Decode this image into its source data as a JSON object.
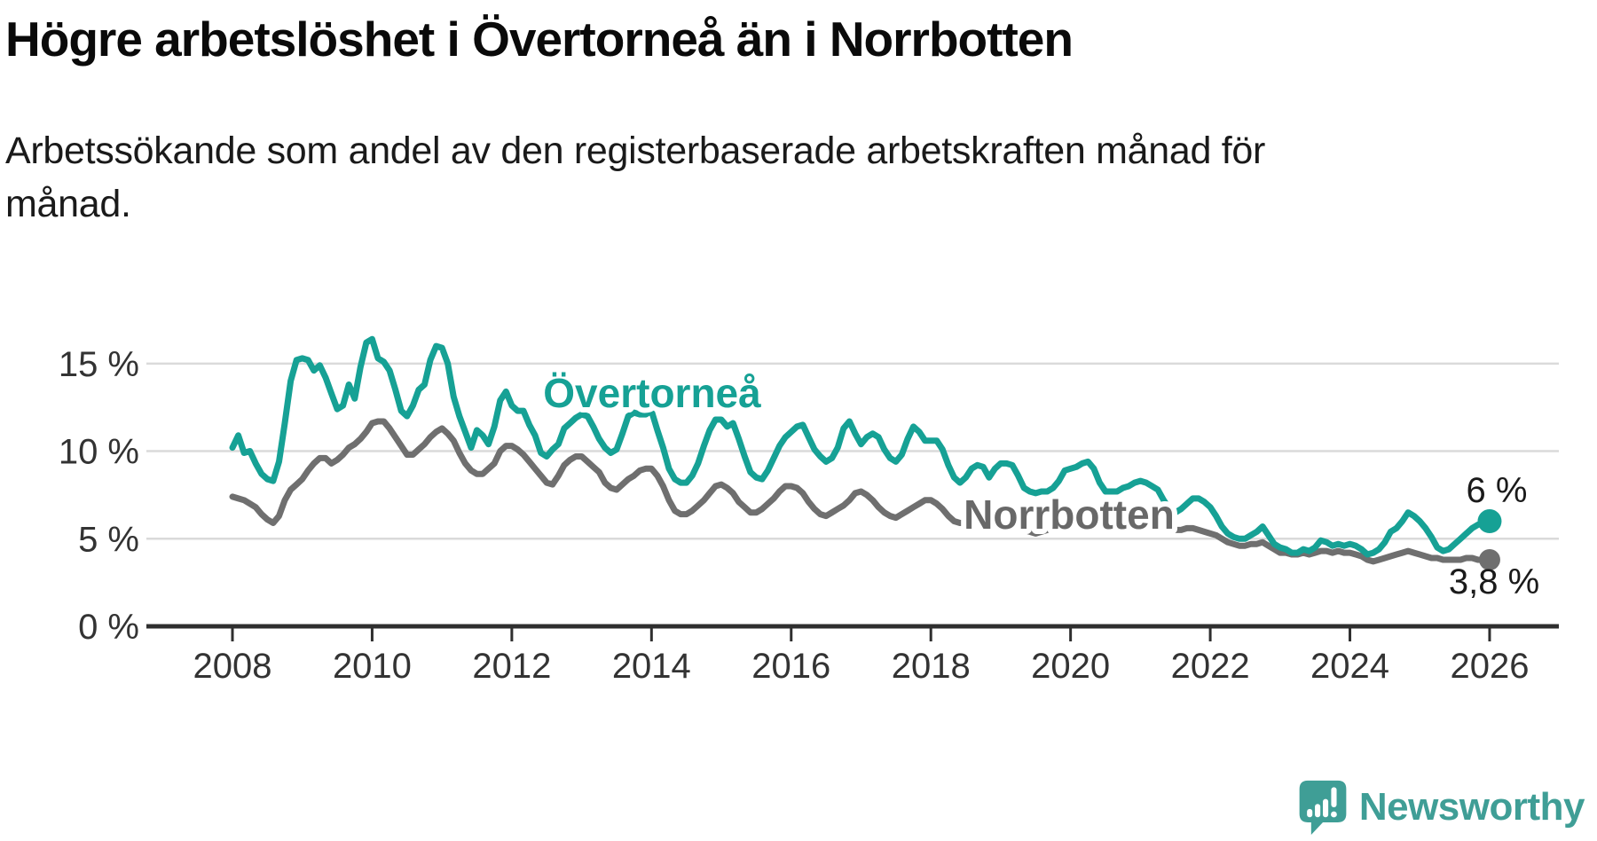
{
  "header": {
    "title": "Högre arbetslöshet i Övertorneå än i Norrbotten",
    "subtitle_line1": "Arbetssökande som andel av den registerbaserade arbetskraften månad för",
    "subtitle_line2": "månad."
  },
  "colors": {
    "accent_teal": "#16A195",
    "line_gray": "#6F6F6F",
    "label_gray": "#686868",
    "grid": "#DADADA",
    "axis": "#2F2F2F",
    "axis_text": "#333333",
    "text": "#1A1A1A",
    "logo_teal": "#3F9E96"
  },
  "annotations": {
    "overtornea_label": "Övertorneå",
    "norrbotten_label": "Norrbotten",
    "overtornea_end_value": "6 %",
    "norrbotten_end_value": "3,8 %"
  },
  "branding": {
    "logo_icon": "speech-bubble-chart-icon",
    "logo_text": "Newsworthy"
  },
  "chart_data": {
    "type": "line",
    "title": "Högre arbetslöshet i Övertorneå än i Norrbotten",
    "ylabel": "Arbetssökande som andel av den registerbaserade arbetskraften",
    "unit": "percent",
    "frequency": "monthly",
    "x_start": "2008-01",
    "x_end": "2026-01",
    "grid": "horizontal",
    "legend_position": "inline-labels",
    "ylim": [
      0,
      17
    ],
    "y_tick_values": [
      15,
      10,
      5,
      0
    ],
    "y_tick_labels": [
      "15 %",
      "10 %",
      "5 %",
      "0 %"
    ],
    "x_tick_years": [
      2008,
      2010,
      2012,
      2014,
      2016,
      2018,
      2020,
      2022,
      2024,
      2026
    ],
    "x_tick_labels": [
      "2008",
      "2010",
      "2012",
      "2014",
      "2016",
      "2018",
      "2020",
      "2022",
      "2024",
      "2026"
    ],
    "series": [
      {
        "name": "Övertorneå",
        "color": "#16A195",
        "end_label": "6 %",
        "end_value": 6.0,
        "values": [
          10.2,
          10.9,
          9.9,
          10.0,
          9.3,
          8.7,
          8.4,
          8.3,
          9.4,
          11.6,
          14.0,
          15.2,
          15.3,
          15.2,
          14.6,
          14.9,
          14.2,
          13.3,
          12.4,
          12.6,
          13.8,
          13.0,
          14.8,
          16.2,
          16.4,
          15.3,
          15.1,
          14.6,
          13.5,
          12.3,
          12.0,
          12.6,
          13.5,
          13.8,
          15.2,
          16.0,
          15.9,
          15.0,
          13.1,
          12.0,
          11.1,
          10.2,
          11.2,
          10.9,
          10.4,
          11.4,
          12.9,
          13.4,
          12.6,
          12.3,
          12.3,
          11.5,
          10.9,
          9.9,
          9.7,
          10.1,
          10.4,
          11.3,
          11.6,
          11.9,
          12.1,
          12.0,
          11.4,
          10.7,
          10.2,
          9.9,
          10.1,
          11.0,
          12.0,
          12.2,
          12.1,
          12.1,
          12.3,
          11.2,
          10.2,
          9.0,
          8.4,
          8.2,
          8.2,
          8.6,
          9.3,
          10.3,
          11.2,
          11.8,
          11.8,
          11.4,
          11.6,
          10.7,
          9.7,
          8.8,
          8.5,
          8.4,
          8.9,
          9.6,
          10.3,
          10.8,
          11.1,
          11.4,
          11.5,
          10.8,
          10.1,
          9.7,
          9.4,
          9.6,
          10.2,
          11.3,
          11.7,
          11.0,
          10.4,
          10.8,
          11.0,
          10.8,
          10.1,
          9.6,
          9.4,
          9.8,
          10.7,
          11.4,
          11.1,
          10.6,
          10.6,
          10.6,
          10.1,
          9.2,
          8.5,
          8.2,
          8.5,
          9.0,
          9.2,
          9.1,
          8.5,
          9.0,
          9.3,
          9.3,
          9.2,
          8.6,
          7.9,
          7.7,
          7.6,
          7.7,
          7.7,
          7.9,
          8.3,
          8.9,
          9.0,
          9.1,
          9.3,
          9.4,
          9.0,
          8.2,
          7.7,
          7.7,
          7.7,
          7.9,
          8.0,
          8.2,
          8.3,
          8.2,
          8.0,
          7.8,
          7.2,
          6.7,
          6.5,
          6.7,
          7.0,
          7.3,
          7.3,
          7.1,
          6.8,
          6.3,
          5.7,
          5.3,
          5.1,
          5.0,
          5.0,
          5.2,
          5.4,
          5.7,
          5.2,
          4.7,
          4.5,
          4.4,
          4.2,
          4.2,
          4.4,
          4.3,
          4.5,
          4.9,
          4.8,
          4.6,
          4.7,
          4.6,
          4.7,
          4.6,
          4.4,
          4.1,
          4.2,
          4.4,
          4.8,
          5.4,
          5.6,
          6.0,
          6.5,
          6.3,
          6.0,
          5.6,
          5.1,
          4.5,
          4.3,
          4.4,
          4.7,
          5.0,
          5.3,
          5.6,
          5.8,
          5.9,
          6.0
        ]
      },
      {
        "name": "Norrbotten",
        "color": "#6F6F6F",
        "end_label": "3,8 %",
        "end_value": 3.8,
        "values": [
          7.4,
          7.3,
          7.2,
          7.0,
          6.8,
          6.4,
          6.1,
          5.9,
          6.3,
          7.2,
          7.8,
          8.1,
          8.4,
          8.9,
          9.3,
          9.6,
          9.6,
          9.3,
          9.5,
          9.8,
          10.2,
          10.4,
          10.7,
          11.1,
          11.6,
          11.7,
          11.7,
          11.3,
          10.8,
          10.3,
          9.8,
          9.8,
          10.1,
          10.4,
          10.8,
          11.1,
          11.3,
          11.0,
          10.6,
          9.9,
          9.3,
          8.9,
          8.7,
          8.7,
          9.0,
          9.3,
          10.0,
          10.3,
          10.3,
          10.1,
          9.8,
          9.4,
          9.0,
          8.6,
          8.2,
          8.1,
          8.6,
          9.2,
          9.5,
          9.7,
          9.7,
          9.4,
          9.1,
          8.8,
          8.2,
          7.9,
          7.8,
          8.1,
          8.4,
          8.6,
          8.9,
          9.0,
          9.0,
          8.6,
          8.0,
          7.2,
          6.6,
          6.4,
          6.4,
          6.6,
          6.9,
          7.2,
          7.6,
          8.0,
          8.1,
          7.9,
          7.6,
          7.1,
          6.8,
          6.5,
          6.5,
          6.7,
          7.0,
          7.3,
          7.7,
          8.0,
          8.0,
          7.9,
          7.6,
          7.1,
          6.7,
          6.4,
          6.3,
          6.5,
          6.7,
          6.9,
          7.2,
          7.6,
          7.7,
          7.5,
          7.2,
          6.8,
          6.5,
          6.3,
          6.2,
          6.4,
          6.6,
          6.8,
          7.0,
          7.2,
          7.2,
          7.0,
          6.7,
          6.3,
          6.0,
          5.9,
          5.9,
          6.0,
          6.1,
          6.1,
          6.0,
          6.1,
          6.1,
          6.0,
          5.9,
          5.7,
          5.5,
          5.4,
          5.3,
          5.4,
          5.5,
          5.6,
          5.8,
          6.0,
          6.1,
          6.2,
          6.5,
          6.8,
          6.7,
          6.5,
          6.2,
          6.1,
          6.0,
          5.9,
          5.8,
          5.8,
          5.9,
          5.9,
          5.8,
          5.7,
          5.6,
          5.5,
          5.5,
          5.5,
          5.6,
          5.6,
          5.5,
          5.4,
          5.3,
          5.2,
          5.0,
          4.8,
          4.7,
          4.6,
          4.6,
          4.7,
          4.7,
          4.8,
          4.6,
          4.4,
          4.2,
          4.2,
          4.1,
          4.1,
          4.2,
          4.1,
          4.2,
          4.3,
          4.3,
          4.2,
          4.3,
          4.2,
          4.2,
          4.1,
          4.0,
          3.8,
          3.7,
          3.8,
          3.9,
          4.0,
          4.1,
          4.2,
          4.3,
          4.2,
          4.1,
          4.0,
          3.9,
          3.9,
          3.8,
          3.8,
          3.8,
          3.8,
          3.9,
          3.9,
          3.8,
          3.8,
          3.8
        ]
      }
    ]
  }
}
